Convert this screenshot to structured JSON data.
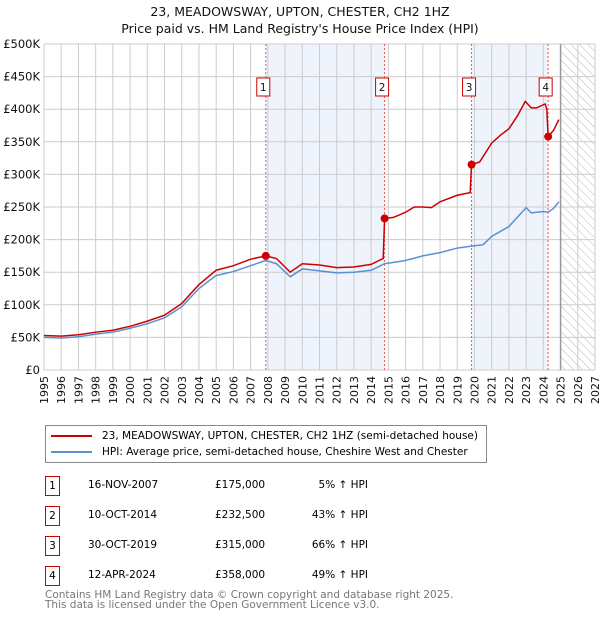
{
  "chart_data": {
    "type": "line",
    "title": "23, MEADOWSWAY, UPTON, CHESTER, CH2 1HZ",
    "subtitle": "Price paid vs. HM Land Registry's House Price Index (HPI)",
    "xlim": [
      1995,
      2027
    ],
    "ylim": [
      0,
      500000
    ],
    "x_ticks": [
      "1995",
      "1996",
      "1997",
      "1998",
      "1999",
      "2000",
      "2001",
      "2002",
      "2003",
      "2004",
      "2005",
      "2006",
      "2007",
      "2008",
      "2009",
      "2010",
      "2011",
      "2012",
      "2013",
      "2014",
      "2015",
      "2016",
      "2017",
      "2018",
      "2019",
      "2020",
      "2021",
      "2022",
      "2023",
      "2024",
      "2025",
      "2026",
      "2027"
    ],
    "y_ticks": [
      "£0",
      "£50K",
      "£100K",
      "£150K",
      "£200K",
      "£250K",
      "£300K",
      "£350K",
      "£400K",
      "£450K",
      "£500K"
    ],
    "grid": true,
    "legend_placement": "below",
    "series": [
      {
        "name": "23, MEADOWSWAY, UPTON, CHESTER, CH2 1HZ (semi-detached house)",
        "color": "#cc0000",
        "x": [
          1995,
          1996,
          1997,
          1998,
          1999,
          2000,
          2001,
          2002,
          2003,
          2004,
          2005,
          2006,
          2007,
          2007.88,
          2008.5,
          2009.3,
          2010,
          2011,
          2012,
          2013,
          2014,
          2014.7,
          2014.78,
          2015.3,
          2016,
          2016.5,
          2017,
          2017.5,
          2018,
          2019,
          2019.75,
          2019.83,
          2020.3,
          2021,
          2021.5,
          2022,
          2022.5,
          2022.95,
          2023.3,
          2023.6,
          2024.1,
          2024.2,
          2024.28,
          2024.6,
          2024.9
        ],
        "y": [
          53000,
          52000,
          54000,
          58000,
          61000,
          67000,
          75000,
          84000,
          102000,
          131000,
          153000,
          160000,
          170000,
          175000,
          171000,
          150000,
          163000,
          161000,
          157000,
          158000,
          162000,
          171000,
          232500,
          234000,
          242000,
          250000,
          250000,
          249000,
          258000,
          268000,
          272000,
          315000,
          319000,
          348000,
          360000,
          370000,
          390000,
          412000,
          402000,
          402000,
          408000,
          400000,
          358000,
          368000,
          384000
        ]
      },
      {
        "name": "HPI: Average price, semi-detached house, Cheshire West and Chester",
        "color": "#5b8fd4",
        "x": [
          1995,
          1996,
          1997,
          1998,
          1999,
          2000,
          2001,
          2002,
          2003,
          2004,
          2005,
          2006,
          2007,
          2007.88,
          2008.5,
          2009.3,
          2010,
          2011,
          2012,
          2013,
          2014,
          2014.78,
          2016,
          2017,
          2018,
          2019,
          2019.83,
          2020.5,
          2021,
          2022,
          2023,
          2023.3,
          2024,
          2024.28,
          2024.6,
          2024.9
        ],
        "y": [
          50000,
          49000,
          51000,
          55000,
          58000,
          64000,
          71000,
          80000,
          97000,
          125000,
          145000,
          151000,
          160000,
          168000,
          163000,
          143000,
          155000,
          152000,
          149000,
          150000,
          153000,
          163000,
          168000,
          175000,
          180000,
          187000,
          190000,
          192000,
          205000,
          220000,
          249000,
          241000,
          243000,
          242000,
          248000,
          258000
        ]
      }
    ],
    "sales": [
      {
        "label": "1",
        "x": 2007.88,
        "date": "16-NOV-2007",
        "price": "£175,000",
        "value": 175000,
        "hpi": "5% ↑ HPI"
      },
      {
        "label": "2",
        "x": 2014.78,
        "date": "10-OCT-2014",
        "price": "£232,500",
        "value": 232500,
        "hpi": "43% ↑ HPI"
      },
      {
        "label": "3",
        "x": 2019.83,
        "date": "30-OCT-2019",
        "price": "£315,000",
        "value": 315000,
        "hpi": "66% ↑ HPI"
      },
      {
        "label": "4",
        "x": 2024.28,
        "date": "12-APR-2024",
        "price": "£358,000",
        "value": 358000,
        "hpi": "49% ↑ HPI"
      }
    ],
    "forecast_start": 2025
  },
  "footer": {
    "line1": "Contains HM Land Registry data © Crown copyright and database right 2025.",
    "line2": "This data is licensed under the Open Government Licence v3.0."
  }
}
